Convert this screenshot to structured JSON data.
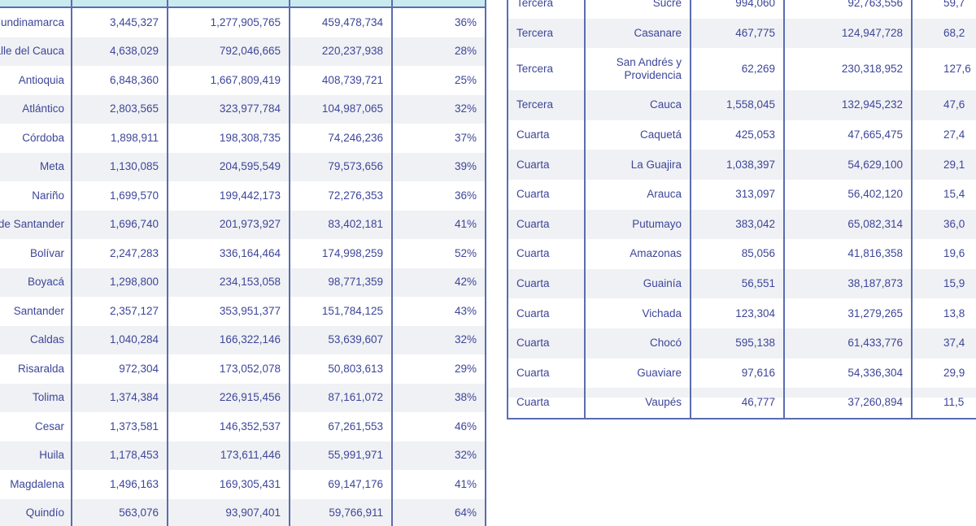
{
  "accent_colors": {
    "text_navy": "#3d4699",
    "table_border_blue": "#5b6cb0",
    "row_stripe_gray": "#f0f1f4",
    "header_band_teal": "#c9eaee"
  },
  "chart_data": [
    {
      "type": "table",
      "name": "departments-table-left",
      "columns": [
        "department",
        "population",
        "col3",
        "col4",
        "percent"
      ],
      "header_labels_visible": false,
      "rows": [
        [
          "Cundinamarca",
          "3,445,327",
          "1,277,905,765",
          "459,478,734",
          "36%"
        ],
        [
          "Valle del Cauca",
          "4,638,029",
          "792,046,665",
          "220,237,938",
          "28%"
        ],
        [
          "Antioquia",
          "6,848,360",
          "1,667,809,419",
          "408,739,721",
          "25%"
        ],
        [
          "Atlántico",
          "2,803,565",
          "323,977,784",
          "104,987,065",
          "32%"
        ],
        [
          "Córdoba",
          "1,898,911",
          "198,308,735",
          "74,246,236",
          "37%"
        ],
        [
          "Meta",
          "1,130,085",
          "204,595,549",
          "79,573,656",
          "39%"
        ],
        [
          "Nariño",
          "1,699,570",
          "199,442,173",
          "72,276,353",
          "36%"
        ],
        [
          "Norte de Santander",
          "1,696,740",
          "201,973,927",
          "83,402,181",
          "41%"
        ],
        [
          "Bolívar",
          "2,247,283",
          "336,164,464",
          "174,998,259",
          "52%"
        ],
        [
          "Boyacá",
          "1,298,800",
          "234,153,058",
          "98,771,359",
          "42%"
        ],
        [
          "Santander",
          "2,357,127",
          "353,951,377",
          "151,784,125",
          "43%"
        ],
        [
          "Caldas",
          "1,040,284",
          "166,322,146",
          "53,639,607",
          "32%"
        ],
        [
          "Risaralda",
          "972,304",
          "173,052,078",
          "50,803,613",
          "29%"
        ],
        [
          "Tolima",
          "1,374,384",
          "226,915,456",
          "87,161,072",
          "38%"
        ],
        [
          "Cesar",
          "1,373,581",
          "146,352,537",
          "67,261,553",
          "46%"
        ],
        [
          "Huila",
          "1,178,453",
          "173,611,446",
          "55,991,971",
          "32%"
        ],
        [
          "Magdalena",
          "1,496,163",
          "169,305,431",
          "69,147,176",
          "41%"
        ],
        [
          "Quindío",
          "563,076",
          "93,907,401",
          "59,766,911",
          "64%"
        ]
      ]
    },
    {
      "type": "table",
      "name": "departments-table-right",
      "columns": [
        "category",
        "department",
        "population",
        "col4",
        "col5_partial"
      ],
      "header_labels_visible": false,
      "rows": [
        [
          "Tercera",
          "Sucre",
          "994,060",
          "92,763,556",
          "59,7"
        ],
        [
          "Tercera",
          "Casanare",
          "467,775",
          "124,947,728",
          "68,2"
        ],
        [
          "Tercera",
          "San Andrés y Providencia",
          "62,269",
          "230,318,952",
          "127,6"
        ],
        [
          "Tercera",
          "Cauca",
          "1,558,045",
          "132,945,232",
          "47,6"
        ],
        [
          "Cuarta",
          "Caquetá",
          "425,053",
          "47,665,475",
          "27,4"
        ],
        [
          "Cuarta",
          "La Guajira",
          "1,038,397",
          "54,629,100",
          "29,1"
        ],
        [
          "Cuarta",
          "Arauca",
          "313,097",
          "56,402,120",
          "15,4"
        ],
        [
          "Cuarta",
          "Putumayo",
          "383,042",
          "65,082,314",
          "36,0"
        ],
        [
          "Cuarta",
          "Amazonas",
          "85,056",
          "41,816,358",
          "19,6"
        ],
        [
          "Cuarta",
          "Guainía",
          "56,551",
          "38,187,873",
          "15,9"
        ],
        [
          "Cuarta",
          "Vichada",
          "123,304",
          "31,279,265",
          "13,8"
        ],
        [
          "Cuarta",
          "Chocó",
          "595,138",
          "61,433,776",
          "37,4"
        ],
        [
          "Cuarta",
          "Guaviare",
          "97,616",
          "54,336,304",
          "29,9"
        ],
        [
          "Cuarta",
          "Vaupés",
          "46,777",
          "37,260,894",
          "11,5"
        ]
      ]
    }
  ]
}
